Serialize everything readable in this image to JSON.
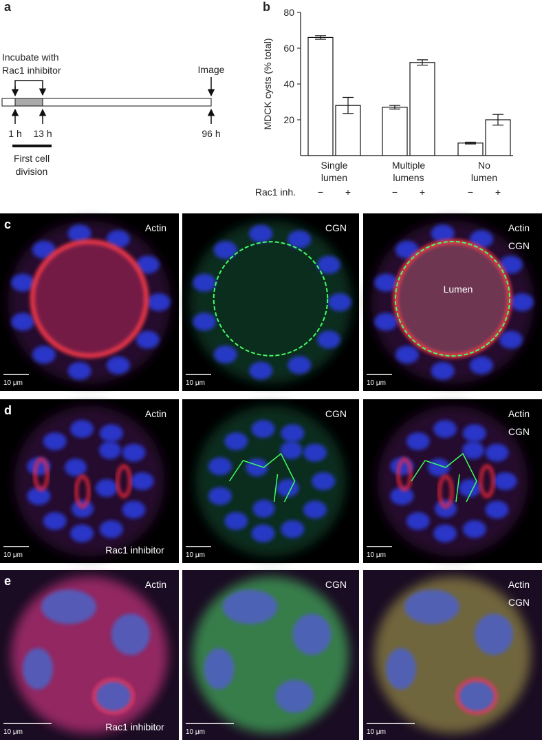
{
  "panel_a": {
    "label": "a",
    "incubate": "Incubate with",
    "inhibitor": "Rac1 inhibitor",
    "image": "Image",
    "times": [
      "1 h",
      "13 h",
      "96 h"
    ],
    "division": [
      "First cell",
      "division"
    ]
  },
  "chart_data": {
    "type": "bar",
    "panel_label": "b",
    "ylabel": "MDCK cysts (% total)",
    "categories": [
      "Single lumen",
      "Multiple lumens",
      "No lumen"
    ],
    "series_label": "Rac1 inh.",
    "series": [
      {
        "name": "−",
        "color": "#ffffff",
        "values": [
          66,
          27,
          7
        ],
        "errors": [
          1,
          1,
          0.5
        ]
      },
      {
        "name": "+",
        "color": "#ffffff",
        "values": [
          28,
          52,
          20
        ],
        "errors": [
          4.5,
          1.5,
          3
        ]
      }
    ],
    "ylim": [
      0,
      80
    ],
    "yticks": [
      20,
      40,
      60,
      80
    ]
  },
  "micrographs": [
    {
      "label": "c",
      "images": [
        {
          "stains": [
            "Actin"
          ],
          "scale": "10 μm"
        },
        {
          "stains": [
            "CGN"
          ],
          "scale": "10 μm"
        },
        {
          "stains": [
            "Actin",
            "CGN"
          ],
          "note": "Lumen",
          "scale": "10 μm"
        }
      ]
    },
    {
      "label": "d",
      "images": [
        {
          "stains": [
            "Actin"
          ],
          "note": "Rac1 inhibitor",
          "scale": "10 μm"
        },
        {
          "stains": [
            "CGN"
          ],
          "scale": "10 μm"
        },
        {
          "stains": [
            "Actin",
            "CGN"
          ],
          "scale": "10 μm"
        }
      ]
    },
    {
      "label": "e",
      "images": [
        {
          "stains": [
            "Actin"
          ],
          "note": "Rac1 inhibitor",
          "scale": "10 μm"
        },
        {
          "stains": [
            "CGN"
          ],
          "scale": "10 μm"
        },
        {
          "stains": [
            "Actin",
            "CGN"
          ],
          "scale": "10 μm"
        }
      ]
    }
  ]
}
